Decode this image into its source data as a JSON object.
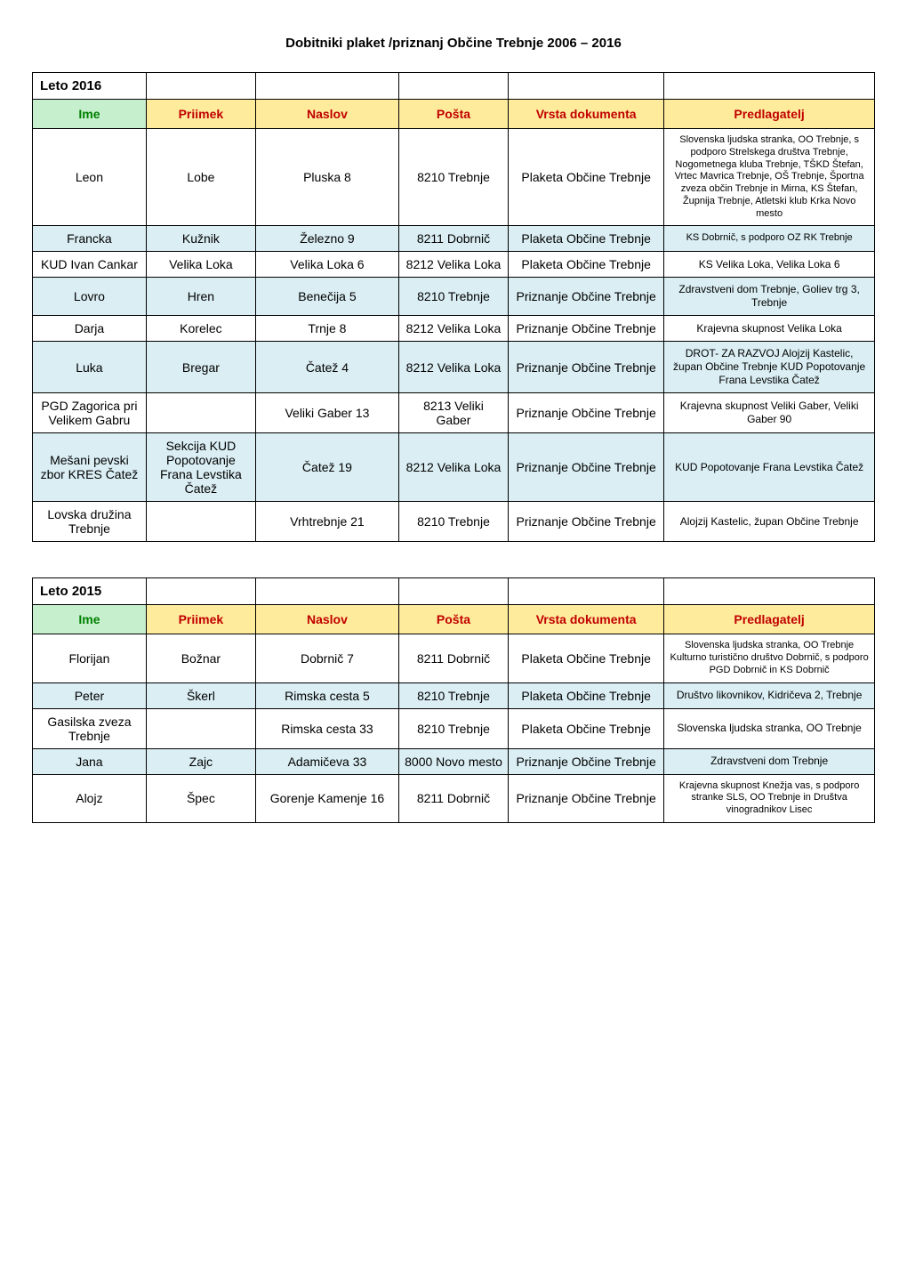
{
  "page": {
    "title": "Dobitniki  plaket /priznanj Občine Trebnje 2006 – 2016"
  },
  "tables": [
    {
      "year_label": "Leto 2016",
      "headers": {
        "ime": "Ime",
        "priimek": "Priimek",
        "naslov": "Naslov",
        "posta": "Pošta",
        "vrsta": "Vrsta dokumenta",
        "predlagatelj": "Predlagatelj"
      },
      "rows": [
        {
          "ime": "Leon",
          "priimek": "Lobe",
          "naslov": "Pluska 8",
          "posta": "8210 Trebnje",
          "vrsta": "Plaketa Občine Trebnje",
          "predl": "Slovenska ljudska stranka, OO Trebnje, s podporo Strelskega društva Trebnje, Nogometnega kluba Trebnje, TŠKD Štefan, Vrtec Mavrica Trebnje, OŠ Trebnje, Športna zveza občin Trebnje in Mirna, KS Štefan, Župnija Trebnje, Atletski klub Krka Novo mesto",
          "predl_class": "small"
        },
        {
          "ime": "Francka",
          "priimek": "Kužnik",
          "naslov": "Železno 9",
          "posta": "8211 Dobrnič",
          "vrsta": "Plaketa Občine Trebnje",
          "predl": "KS Dobrnič, s podporo OZ RK Trebnje",
          "predl_class": "small"
        },
        {
          "ime": "KUD Ivan Cankar",
          "priimek": "Velika Loka",
          "naslov": "Velika Loka 6",
          "posta": "8212 Velika Loka",
          "vrsta": "Plaketa Občine Trebnje",
          "predl": "KS Velika Loka, Velika Loka 6",
          "predl_class": "small12"
        },
        {
          "ime": "Lovro",
          "priimek": "Hren",
          "naslov": "Benečija 5",
          "posta": "8210 Trebnje",
          "vrsta": "Priznanje Občine Trebnje",
          "predl": "Zdravstveni dom Trebnje, Goliev trg 3, Trebnje",
          "predl_class": "small12"
        },
        {
          "ime": "Darja",
          "priimek": "Korelec",
          "naslov": "Trnje 8",
          "posta": "8212 Velika Loka",
          "vrsta": "Priznanje Občine Trebnje",
          "predl": "Krajevna skupnost Velika Loka",
          "predl_class": "small12"
        },
        {
          "ime": "Luka",
          "priimek": "Bregar",
          "naslov": "Čatež 4",
          "posta": "8212 Velika Loka",
          "vrsta": "Priznanje Občine Trebnje",
          "predl": "DROT- ZA  RAZVOJ Alojzij Kastelic, župan Občine Trebnje KUD Popotovanje Frana Levstika Čatež",
          "predl_class": "small12"
        },
        {
          "ime": "PGD Zagorica pri Velikem Gabru",
          "priimek": "",
          "naslov": "Veliki Gaber 13",
          "posta": "8213 Veliki Gaber",
          "vrsta": "Priznanje Občine Trebnje",
          "predl": "Krajevna skupnost Veliki Gaber, Veliki Gaber 90",
          "predl_class": "small12"
        },
        {
          "ime": "Mešani pevski zbor KRES Čatež",
          "priimek": "Sekcija KUD Popotovanje Frana Levstika Čatež",
          "naslov": "Čatež 19",
          "posta": "8212 Velika Loka",
          "vrsta": "Priznanje Občine Trebnje",
          "predl": "KUD Popotovanje Frana Levstika Čatež",
          "predl_class": "small12"
        },
        {
          "ime": "Lovska družina Trebnje",
          "priimek": "",
          "naslov": "Vrhtrebnje 21",
          "posta": "8210 Trebnje",
          "vrsta": "Priznanje Občine Trebnje",
          "predl": "Alojzij Kastelic, župan Občine Trebnje",
          "predl_class": "small12"
        }
      ]
    },
    {
      "year_label": "Leto 2015",
      "headers": {
        "ime": "Ime",
        "priimek": "Priimek",
        "naslov": "Naslov",
        "posta": "Pošta",
        "vrsta": "Vrsta dokumenta",
        "predlagatelj": "Predlagatelj"
      },
      "rows": [
        {
          "ime": "Florijan",
          "priimek": "Božnar",
          "naslov": "Dobrnič 7",
          "posta": "8211 Dobrnič",
          "vrsta": "Plaketa Občine Trebnje",
          "predl": "Slovenska ljudska stranka, OO Trebnje Kulturno turistično društvo Dobrnič, s podporo PGD Dobrnič in KS Dobrnič",
          "predl_class": "small"
        },
        {
          "ime": "Peter",
          "priimek": "Škerl",
          "naslov": "Rimska cesta 5",
          "posta": "8210 Trebnje",
          "vrsta": "Plaketa Občine Trebnje",
          "predl": "Društvo likovnikov, Kidričeva 2, Trebnje",
          "predl_class": "small12"
        },
        {
          "ime": "Gasilska zveza Trebnje",
          "priimek": "",
          "naslov": "Rimska cesta 33",
          "posta": "8210 Trebnje",
          "vrsta": "Plaketa Občine Trebnje",
          "predl": "Slovenska ljudska stranka, OO Trebnje",
          "predl_class": "small12"
        },
        {
          "ime": "Jana",
          "priimek": "Zajc",
          "naslov": "Adamičeva 33",
          "posta": "8000 Novo mesto",
          "vrsta": "Priznanje Občine Trebnje",
          "predl": "Zdravstveni dom Trebnje",
          "predl_class": "small12"
        },
        {
          "ime": "Alojz",
          "priimek": "Špec",
          "naslov": "Gorenje Kamenje 16",
          "posta": "8211 Dobrnič",
          "vrsta": "Priznanje Občine Trebnje",
          "predl": "Krajevna skupnost Knežja vas, s podporo stranke SLS, OO Trebnje in Društva vinogradnikov Lisec",
          "predl_class": "small"
        }
      ]
    }
  ]
}
